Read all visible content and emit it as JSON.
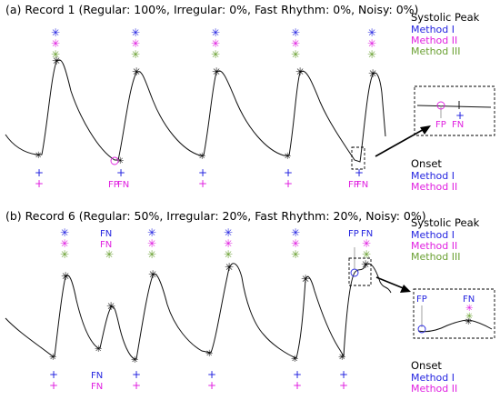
{
  "colors": {
    "method1": "#2424e0",
    "method2": "#e020e0",
    "method3": "#6aa032",
    "wave": "#111111",
    "star": "#000000"
  },
  "panels": [
    {
      "id": "a",
      "title": "(a) Record 1 (Regular: 100%, Irregular: 0%, Fast Rhythm: 0%, Noisy: 0%)",
      "legend_systolic": {
        "heading": "Systolic Peak",
        "items": [
          "Method I",
          "Method II",
          "Method III"
        ]
      },
      "legend_onset": {
        "heading": "Onset",
        "items": [
          "Method I",
          "Method II"
        ]
      },
      "top_marks": [
        [
          "✳",
          "✳",
          "✳"
        ],
        [
          "✳",
          "✳",
          "✳"
        ],
        [
          "✳",
          "✳",
          "✳"
        ],
        [
          "✳",
          "✳",
          "✳"
        ],
        [
          "✳",
          "✳",
          "✳"
        ]
      ],
      "bottom_marks": [
        [
          "+",
          "+"
        ],
        [
          "+",
          "FP"
        ],
        [
          "+",
          "+"
        ],
        [
          "+",
          "+"
        ],
        [
          "+",
          "FP"
        ]
      ],
      "bottom_extra": [
        "",
        "FN",
        "",
        "",
        "FN"
      ],
      "inset_labels": [
        "FP",
        "FN",
        "+"
      ]
    },
    {
      "id": "b",
      "title": "(b) Record 6 (Regular: 50%, Irregular: 20%, Fast Rhythm: 20%, Noisy: 0%)",
      "legend_systolic": {
        "heading": "Systolic Peak",
        "items": [
          "Method I",
          "Method II",
          "Method III"
        ]
      },
      "legend_onset": {
        "heading": "Onset",
        "items": [
          "Method I",
          "Method II"
        ]
      },
      "top_marks": [
        [
          "✳",
          "✳",
          "✳"
        ],
        [
          "FN",
          "FN",
          "✳"
        ],
        [
          "✳",
          "✳",
          "✳"
        ],
        [
          "✳",
          "✳",
          "✳"
        ],
        [
          "✳",
          "✳",
          "✳"
        ],
        [
          "FP",
          "FN",
          "✳"
        ]
      ],
      "top_extra": [
        "",
        "",
        "",
        "",
        "",
        "✳"
      ],
      "bottom_marks": [
        [
          "+",
          "+"
        ],
        [
          "FN",
          "FN"
        ],
        [
          "+",
          "+"
        ],
        [
          "+",
          "+"
        ],
        [
          "+",
          "+"
        ],
        [
          "+",
          "+"
        ]
      ],
      "inset_labels": [
        "FP",
        "FN",
        "✳",
        "✳"
      ]
    }
  ]
}
